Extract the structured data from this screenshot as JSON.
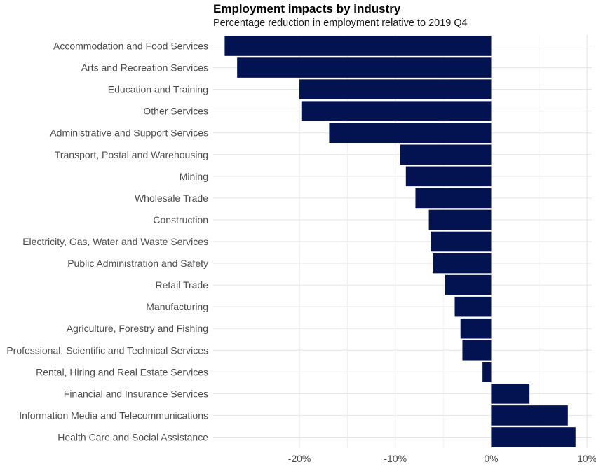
{
  "chart_data": {
    "type": "bar",
    "orientation": "horizontal",
    "title": "Employment impacts by industry",
    "subtitle": "Percentage reduction in employment relative to 2019 Q4",
    "xlabel": "",
    "ylabel": "",
    "categories": [
      "Accommodation and Food Services",
      "Arts and Recreation Services",
      "Education and Training",
      "Other Services",
      "Administrative and Support Services",
      "Transport, Postal and Warehousing",
      "Mining",
      "Wholesale Trade",
      "Construction",
      "Electricity, Gas, Water and Waste Services",
      "Public Administration and Safety",
      "Retail Trade",
      "Manufacturing",
      "Agriculture, Forestry and Fishing",
      "Professional, Scientific and Technical Services",
      "Rental, Hiring and Real Estate Services",
      "Financial and Insurance Services",
      "Information Media and Telecommunications",
      "Health Care and Social Assistance"
    ],
    "values": [
      -27.8,
      -26.5,
      -20.0,
      -19.8,
      -16.9,
      -9.5,
      -8.9,
      -7.9,
      -6.5,
      -6.3,
      -6.1,
      -4.8,
      -3.8,
      -3.2,
      -3.0,
      -0.9,
      4.0,
      8.0,
      8.8
    ],
    "xlim": [
      -29,
      10.5
    ],
    "x_ticks": [
      -20,
      -10,
      0,
      10
    ],
    "x_tick_labels": [
      "-20%",
      "-10%",
      "0%",
      "10%"
    ],
    "grid": true,
    "legend": "none",
    "bar_color": "#031251",
    "grid_color": "#e5e5e5",
    "label_color": "#4d4d4d"
  }
}
